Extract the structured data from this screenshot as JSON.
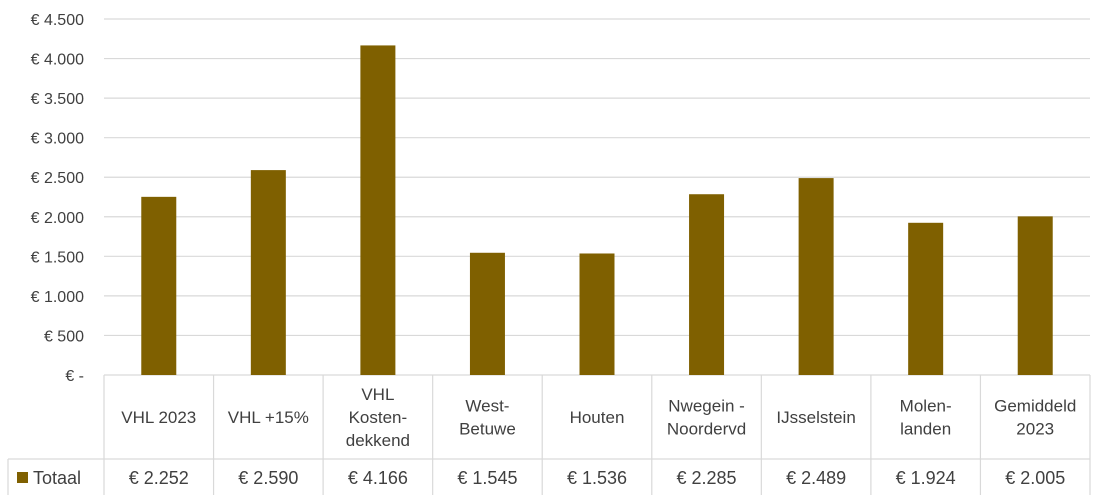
{
  "chart_data": {
    "type": "bar",
    "title": "",
    "xlabel": "",
    "ylabel": "",
    "ylim": [
      0,
      4500
    ],
    "ytick_step": 500,
    "y_tick_labels": [
      "€ -",
      "€ 500",
      "€ 1.000",
      "€ 1.500",
      "€ 2.000",
      "€ 2.500",
      "€ 3.000",
      "€ 3.500",
      "€ 4.000",
      "€ 4.500"
    ],
    "grid": true,
    "legend": "left of data table",
    "categories": [
      [
        "VHL 2023"
      ],
      [
        "VHL +15%"
      ],
      [
        "VHL",
        "Kosten-",
        "dekkend"
      ],
      [
        "West-",
        "Betuwe"
      ],
      [
        "Houten"
      ],
      [
        "Nwegein -",
        "Noordervd"
      ],
      [
        "IJsselstein"
      ],
      [
        "Molen-",
        "landen"
      ],
      [
        "Gemiddeld",
        "2023"
      ]
    ],
    "series": [
      {
        "name": "Totaal",
        "color": "#7f6000",
        "values": [
          2252,
          2590,
          4166,
          1545,
          1536,
          2285,
          2489,
          1924,
          2005
        ],
        "value_labels": [
          "€ 2.252",
          "€ 2.590",
          "€ 4.166",
          "€ 1.545",
          "€ 1.536",
          "€ 2.285",
          "€ 2.489",
          "€ 1.924",
          "€ 2.005"
        ]
      }
    ]
  }
}
